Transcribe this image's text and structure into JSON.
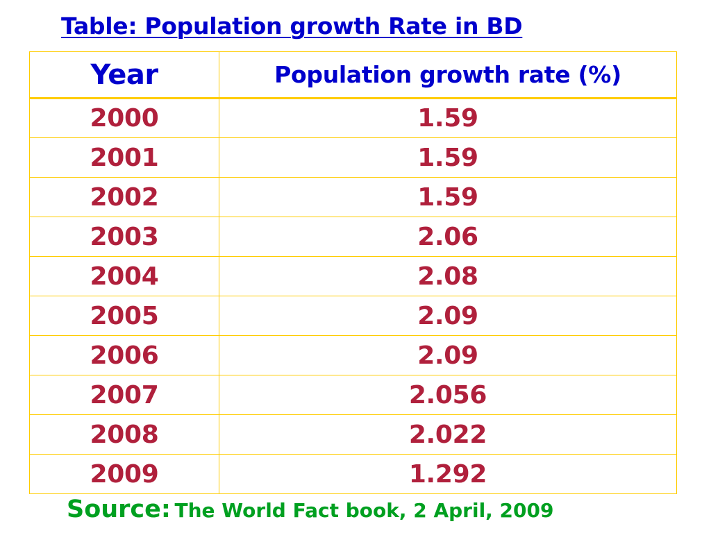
{
  "title": "Table: Population growth Rate in BD",
  "table": {
    "headers": [
      "Year",
      "Population growth rate (%)"
    ],
    "rows": [
      [
        "2000",
        "1.59"
      ],
      [
        "2001",
        "1.59"
      ],
      [
        "2002",
        "1.59"
      ],
      [
        "2003",
        "2.06"
      ],
      [
        "2004",
        "2.08"
      ],
      [
        "2005",
        "2.09"
      ],
      [
        "2006",
        "2.09"
      ],
      [
        "2007",
        "2.056"
      ],
      [
        "2008",
        "2.022"
      ],
      [
        "2009",
        "1.292"
      ]
    ]
  },
  "source": {
    "label": "Source:",
    "text": "The World Fact book, 2 April, 2009"
  },
  "colors": {
    "title": "#0000cc",
    "cell_text": "#b0203c",
    "border": "#ffcc00",
    "source": "#00a020"
  }
}
